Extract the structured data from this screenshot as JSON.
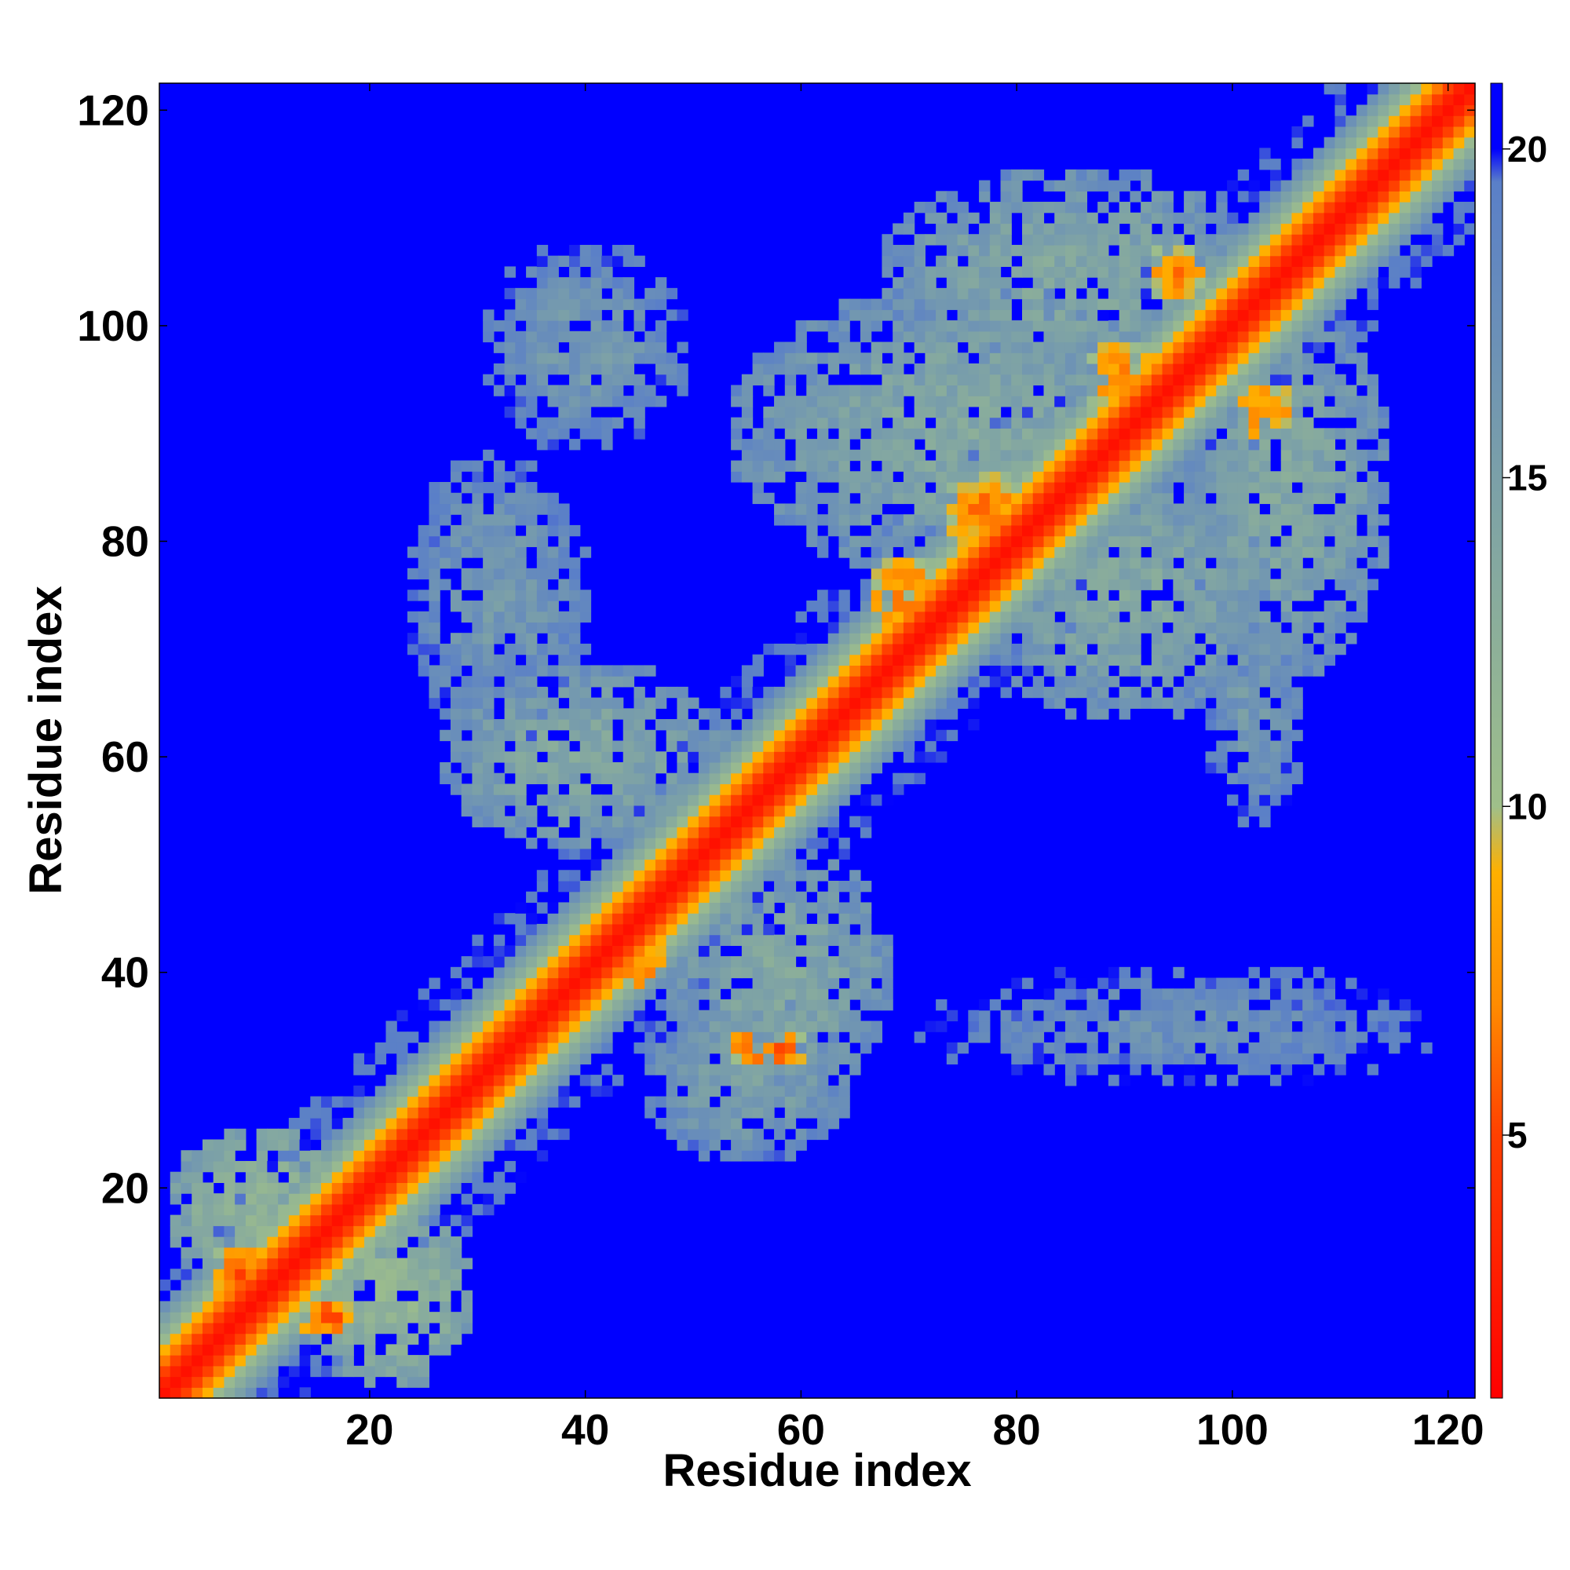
{
  "chart_data": {
    "type": "heatmap",
    "title": "",
    "xlabel": "Residue index",
    "ylabel": "Residue index",
    "n_residues": 122,
    "xlim": [
      1,
      122
    ],
    "ylim": [
      1,
      122
    ],
    "x_ticks": [
      "20",
      "40",
      "60",
      "80",
      "100",
      "120"
    ],
    "y_ticks": [
      "20",
      "40",
      "60",
      "80",
      "100",
      "120"
    ],
    "colorbar": {
      "range": [
        1,
        21
      ],
      "ticks": [
        "5",
        "10",
        "15",
        "20"
      ],
      "stops": [
        {
          "value": 1,
          "color": "#ff0000"
        },
        {
          "value": 5,
          "color": "#ff4000"
        },
        {
          "value": 7,
          "color": "#ff8c00"
        },
        {
          "value": 9,
          "color": "#ffb000"
        },
        {
          "value": 10,
          "color": "#9fbf8a"
        },
        {
          "value": 15,
          "color": "#7ba0a8"
        },
        {
          "value": 19.5,
          "color": "#5a7fc8"
        },
        {
          "value": 20,
          "color": "#0000ff"
        },
        {
          "value": 21,
          "color": "#0000ff"
        }
      ]
    },
    "background_value": 21,
    "near_diagonal_profile": [
      {
        "offset": 0,
        "value": 2
      },
      {
        "offset": 1,
        "value": 3
      },
      {
        "offset": 2,
        "value": 5
      },
      {
        "offset": 3,
        "value": 6.5
      },
      {
        "offset": 4,
        "value": 9
      },
      {
        "offset": 5,
        "value": 11
      },
      {
        "offset": 6,
        "value": 13
      },
      {
        "offset": 7,
        "value": 15
      },
      {
        "offset": 8,
        "value": 17
      }
    ],
    "contact_clusters": [
      {
        "x": 10,
        "y": 18,
        "rx": 9,
        "ry": 8,
        "value": 12
      },
      {
        "x": 22,
        "y": 10,
        "rx": 8,
        "ry": 9,
        "value": 12
      },
      {
        "x": 8,
        "y": 12,
        "rx": 3,
        "ry": 3,
        "value": 6
      },
      {
        "x": 16,
        "y": 8,
        "rx": 3,
        "ry": 2,
        "value": 6
      },
      {
        "x": 40,
        "y": 60,
        "rx": 14,
        "ry": 9,
        "value": 14
      },
      {
        "x": 58,
        "y": 40,
        "rx": 11,
        "ry": 12,
        "value": 14
      },
      {
        "x": 32,
        "y": 75,
        "rx": 9,
        "ry": 14,
        "value": 16
      },
      {
        "x": 40,
        "y": 98,
        "rx": 10,
        "ry": 10,
        "value": 16
      },
      {
        "x": 55,
        "y": 30,
        "rx": 10,
        "ry": 8,
        "value": 15
      },
      {
        "x": 75,
        "y": 90,
        "rx": 22,
        "ry": 14,
        "value": 14
      },
      {
        "x": 90,
        "y": 75,
        "rx": 14,
        "ry": 12,
        "value": 14
      },
      {
        "x": 85,
        "y": 105,
        "rx": 18,
        "ry": 10,
        "value": 14
      },
      {
        "x": 105,
        "y": 85,
        "rx": 10,
        "ry": 18,
        "value": 14
      },
      {
        "x": 102,
        "y": 65,
        "rx": 5,
        "ry": 12,
        "value": 16
      },
      {
        "x": 95,
        "y": 35,
        "rx": 25,
        "ry": 6,
        "value": 17
      },
      {
        "x": 70,
        "y": 75,
        "rx": 4,
        "ry": 4,
        "value": 7
      },
      {
        "x": 77,
        "y": 83,
        "rx": 4,
        "ry": 4,
        "value": 7
      },
      {
        "x": 90,
        "y": 95,
        "rx": 4,
        "ry": 4,
        "value": 7
      },
      {
        "x": 95,
        "y": 105,
        "rx": 3,
        "ry": 3,
        "value": 7
      },
      {
        "x": 103,
        "y": 92,
        "rx": 3,
        "ry": 3,
        "value": 7
      },
      {
        "x": 57,
        "y": 33,
        "rx": 4,
        "ry": 2,
        "value": 6
      },
      {
        "x": 45,
        "y": 41,
        "rx": 3,
        "ry": 3,
        "value": 7
      }
    ]
  }
}
